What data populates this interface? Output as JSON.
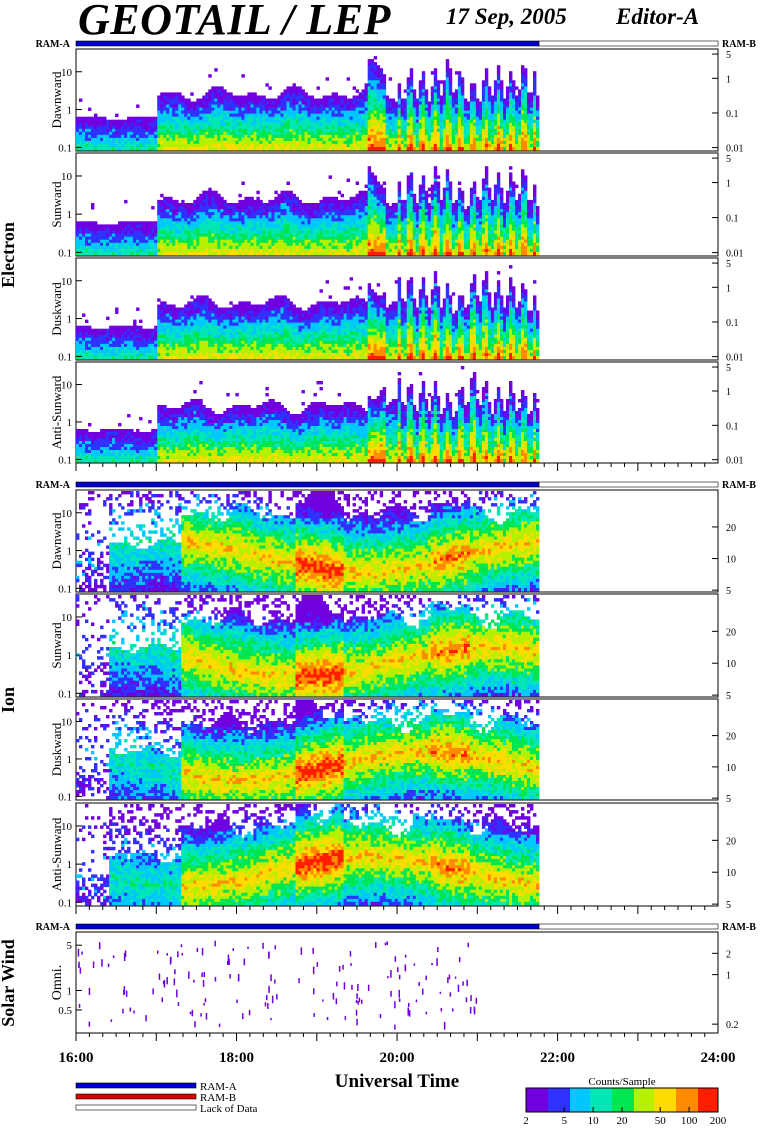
{
  "header": {
    "title": "GEOTAIL / LEP",
    "date": "17 Sep, 2005",
    "editor": "Editor-A"
  },
  "colors": {
    "ram_a": "#0000cc",
    "ram_b": "#dd0000",
    "lack_of_data": "#ffffff",
    "spectrogram_scale": [
      "#7000e0",
      "#3030ff",
      "#00c8ff",
      "#00e6b4",
      "#00e650",
      "#b4f000",
      "#ffdc00",
      "#ff8c00",
      "#ff1e00"
    ]
  },
  "chart_data": {
    "type": "heatmap",
    "x_axis": {
      "label": "Universal Time",
      "range_hours": [
        16,
        24
      ],
      "tick_labels": [
        "16:00",
        "18:00",
        "20:00",
        "22:00",
        "24:00"
      ],
      "tick_hours": [
        16,
        18,
        20,
        22,
        24
      ],
      "minor_tick_step_hours": 0.1667,
      "data_end_hour": 21.77
    },
    "groups": [
      {
        "name": "Electron",
        "ram_left": "RAM-A",
        "ram_right": "RAM-B",
        "status_segments": [
          {
            "start": 16.0,
            "end": 21.77,
            "mode": "RAM-A"
          },
          {
            "start": 21.77,
            "end": 24.0,
            "mode": "Lack of Data"
          }
        ],
        "left_ticks": [
          "0.1",
          "1",
          "10"
        ],
        "left_tick_values": [
          0.1,
          1,
          10
        ],
        "right_ticks": [
          "0.01",
          "0.1",
          "1",
          "5"
        ],
        "right_tick_values": [
          0.01,
          0.1,
          1,
          5
        ],
        "panels": [
          "Dawnward",
          "Sunward",
          "Duskward",
          "Anti-Sunward"
        ]
      },
      {
        "name": "Ion",
        "ram_left": "RAM-A",
        "ram_right": "RAM-B",
        "status_segments": [
          {
            "start": 16.0,
            "end": 21.77,
            "mode": "RAM-A"
          },
          {
            "start": 21.77,
            "end": 24.0,
            "mode": "Lack of Data"
          }
        ],
        "left_ticks": [
          "0.1",
          "1",
          "10"
        ],
        "left_tick_values": [
          0.1,
          1,
          10
        ],
        "right_ticks": [
          "5",
          "10",
          "20"
        ],
        "right_tick_values": [
          5,
          10,
          20
        ],
        "panels": [
          "Dawnward",
          "Sunward",
          "Duskward",
          "Anti-Sunward"
        ]
      },
      {
        "name": "Solar Wind",
        "ram_left": "RAM-A",
        "ram_right": "RAM-B",
        "status_segments": [
          {
            "start": 16.0,
            "end": 21.77,
            "mode": "RAM-A"
          },
          {
            "start": 21.77,
            "end": 24.0,
            "mode": "Lack of Data"
          }
        ],
        "left_ticks": [
          "0.5",
          "1",
          "5"
        ],
        "left_tick_values": [
          0.5,
          1,
          5
        ],
        "right_ticks": [
          "0.2",
          "1",
          "2"
        ],
        "right_tick_values": [
          0.2,
          1,
          2
        ],
        "panels": [
          "Omni."
        ]
      }
    ],
    "legend": [
      {
        "label": "RAM-A",
        "color": "#0000cc"
      },
      {
        "label": "RAM-B",
        "color": "#dd0000"
      },
      {
        "label": "Lack of Data",
        "color": "#ffffff"
      }
    ],
    "colorbar": {
      "title": "Counts/Sample",
      "tick_labels": [
        "2",
        "5",
        "10",
        "20",
        "50",
        "100",
        "200"
      ],
      "tick_values": [
        2,
        5,
        10,
        20,
        50,
        100,
        200
      ],
      "range": [
        2,
        200
      ],
      "scale": "log"
    }
  }
}
